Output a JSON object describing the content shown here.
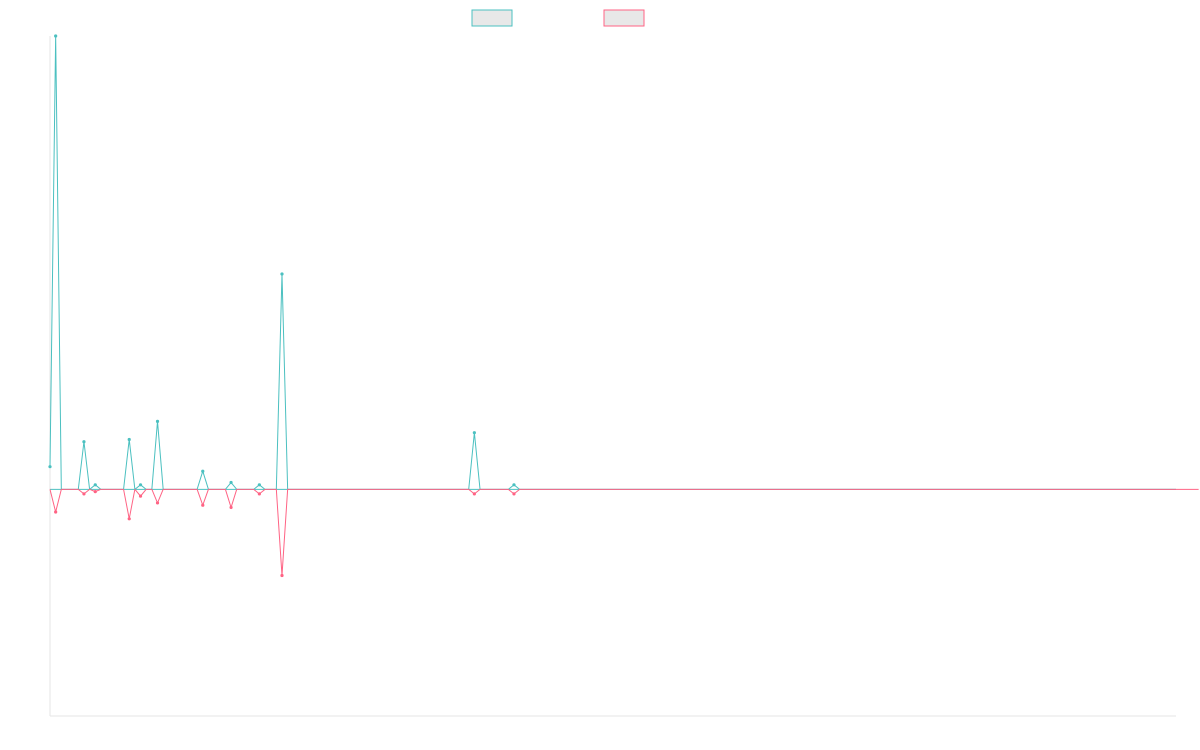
{
  "chart_data": {
    "type": "line",
    "title": "",
    "xlabel": "",
    "ylabel": "",
    "grid": false,
    "legend_position": "top-center",
    "ylim": [
      -100,
      200
    ],
    "x_count": 200,
    "series": [
      {
        "color": "#4bc0c0",
        "values": [
          10,
          200,
          0,
          0,
          0,
          0,
          21,
          0,
          2,
          0,
          0,
          0,
          0,
          0,
          22,
          0,
          2,
          0,
          0,
          30,
          0,
          0,
          0,
          0,
          0,
          0,
          0,
          8,
          0,
          0,
          0,
          0,
          3,
          0,
          0,
          0,
          0,
          2,
          0,
          0,
          0,
          95,
          0,
          0,
          0,
          0,
          0,
          0,
          0,
          0,
          0,
          0,
          0,
          0,
          0,
          0,
          0,
          0,
          0,
          0,
          0,
          0,
          0,
          0,
          0,
          0,
          0,
          0,
          0,
          0,
          0,
          0,
          0,
          0,
          0,
          25,
          0,
          0,
          0,
          0,
          0,
          0,
          2,
          0,
          0,
          0,
          0,
          0,
          0,
          0,
          0,
          0,
          0,
          0,
          0,
          0,
          0,
          0,
          0,
          0,
          0,
          0,
          0,
          0,
          0,
          0,
          0,
          0,
          0,
          0,
          0,
          0,
          0,
          0,
          0,
          0,
          0,
          0,
          0,
          0,
          0,
          0,
          0,
          0,
          0,
          0,
          0,
          0,
          0,
          0,
          0,
          0,
          0,
          0,
          0,
          0,
          0,
          0,
          0,
          0,
          0,
          0,
          0,
          0,
          0,
          0,
          0,
          0,
          0,
          0,
          0,
          0,
          0,
          0,
          0,
          0,
          0,
          0,
          0,
          0,
          0,
          0,
          0,
          0,
          0,
          0,
          0,
          0,
          0,
          0,
          0,
          0,
          0,
          0,
          0,
          0,
          0,
          0,
          0,
          0,
          0,
          0,
          0,
          0,
          0,
          0,
          0,
          0,
          0,
          0,
          0,
          0,
          0,
          0,
          0,
          0,
          0,
          0,
          0,
          0
        ]
      },
      {
        "color": "#ff6384",
        "values": [
          0,
          -10,
          0,
          0,
          0,
          0,
          -2,
          0,
          -1,
          0,
          0,
          0,
          0,
          0,
          -13,
          0,
          -3,
          0,
          0,
          -6,
          0,
          0,
          0,
          0,
          0,
          0,
          0,
          -7,
          0,
          0,
          0,
          0,
          -8,
          0,
          0,
          0,
          0,
          -2,
          0,
          0,
          0,
          -38,
          0,
          0,
          0,
          0,
          0,
          0,
          0,
          0,
          0,
          0,
          0,
          0,
          0,
          0,
          0,
          0,
          0,
          0,
          0,
          0,
          0,
          0,
          0,
          0,
          0,
          0,
          0,
          0,
          0,
          0,
          0,
          0,
          0,
          -2,
          0,
          0,
          0,
          0,
          0,
          0,
          -2,
          0,
          0,
          0,
          0,
          0,
          0,
          0,
          0,
          0,
          0,
          0,
          0,
          0,
          0,
          0,
          0,
          0,
          0,
          0,
          0,
          0,
          0,
          0,
          0,
          0,
          0,
          0,
          0,
          0,
          0,
          0,
          0,
          0,
          0,
          0,
          0,
          0,
          0,
          0,
          0,
          0,
          0,
          0,
          0,
          0,
          0,
          0,
          0,
          0,
          0,
          0,
          0,
          0,
          0,
          0,
          0,
          0,
          0,
          0,
          0,
          0,
          0,
          0,
          0,
          0,
          0,
          0,
          0,
          0,
          0,
          0,
          0,
          0,
          0,
          0,
          0,
          0,
          0,
          0,
          0,
          0,
          0,
          0,
          0,
          0,
          0,
          0,
          0,
          0,
          0,
          0,
          0,
          0,
          0,
          0,
          0,
          0,
          0,
          0,
          0,
          0,
          0,
          0,
          0,
          0,
          0,
          0,
          0,
          0,
          0,
          0,
          0,
          0,
          0,
          0,
          0,
          0,
          0,
          0,
          0,
          0
        ]
      }
    ]
  }
}
